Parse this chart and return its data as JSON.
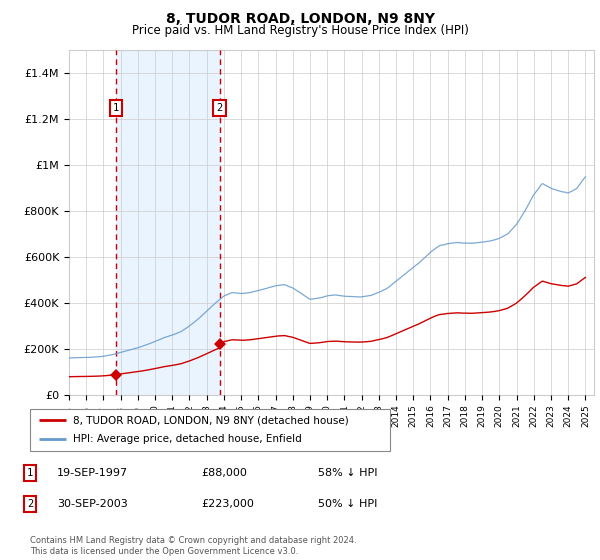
{
  "title": "8, TUDOR ROAD, LONDON, N9 8NY",
  "subtitle": "Price paid vs. HM Land Registry's House Price Index (HPI)",
  "footer": "Contains HM Land Registry data © Crown copyright and database right 2024.\nThis data is licensed under the Open Government Licence v3.0.",
  "legend_line1": "8, TUDOR ROAD, LONDON, N9 8NY (detached house)",
  "legend_line2": "HPI: Average price, detached house, Enfield",
  "sale1_date": "19-SEP-1997",
  "sale1_price": "£88,000",
  "sale1_hpi": "58% ↓ HPI",
  "sale2_date": "30-SEP-2003",
  "sale2_price": "£223,000",
  "sale2_hpi": "50% ↓ HPI",
  "red_color": "#cc0000",
  "blue_color": "#6699cc",
  "background_color": "#ffffff",
  "grid_color": "#cccccc",
  "shade_color": "#ddeeff",
  "ylim_max": 1500000,
  "yticks": [
    0,
    200000,
    400000,
    600000,
    800000,
    1000000,
    1200000,
    1400000
  ],
  "ytick_labels": [
    "£0",
    "£200K",
    "£400K",
    "£600K",
    "£800K",
    "£1M",
    "£1.2M",
    "£1.4M"
  ],
  "sale1_x": 1997.72,
  "sale1_y": 88000,
  "sale2_x": 2003.75,
  "sale2_y": 223000,
  "xlim_min": 1995.0,
  "xlim_max": 2025.5,
  "xticks": [
    1995,
    1996,
    1997,
    1998,
    1999,
    2000,
    2001,
    2002,
    2003,
    2004,
    2005,
    2006,
    2007,
    2008,
    2009,
    2010,
    2011,
    2012,
    2013,
    2014,
    2015,
    2016,
    2017,
    2018,
    2019,
    2020,
    2021,
    2022,
    2023,
    2024,
    2025
  ]
}
